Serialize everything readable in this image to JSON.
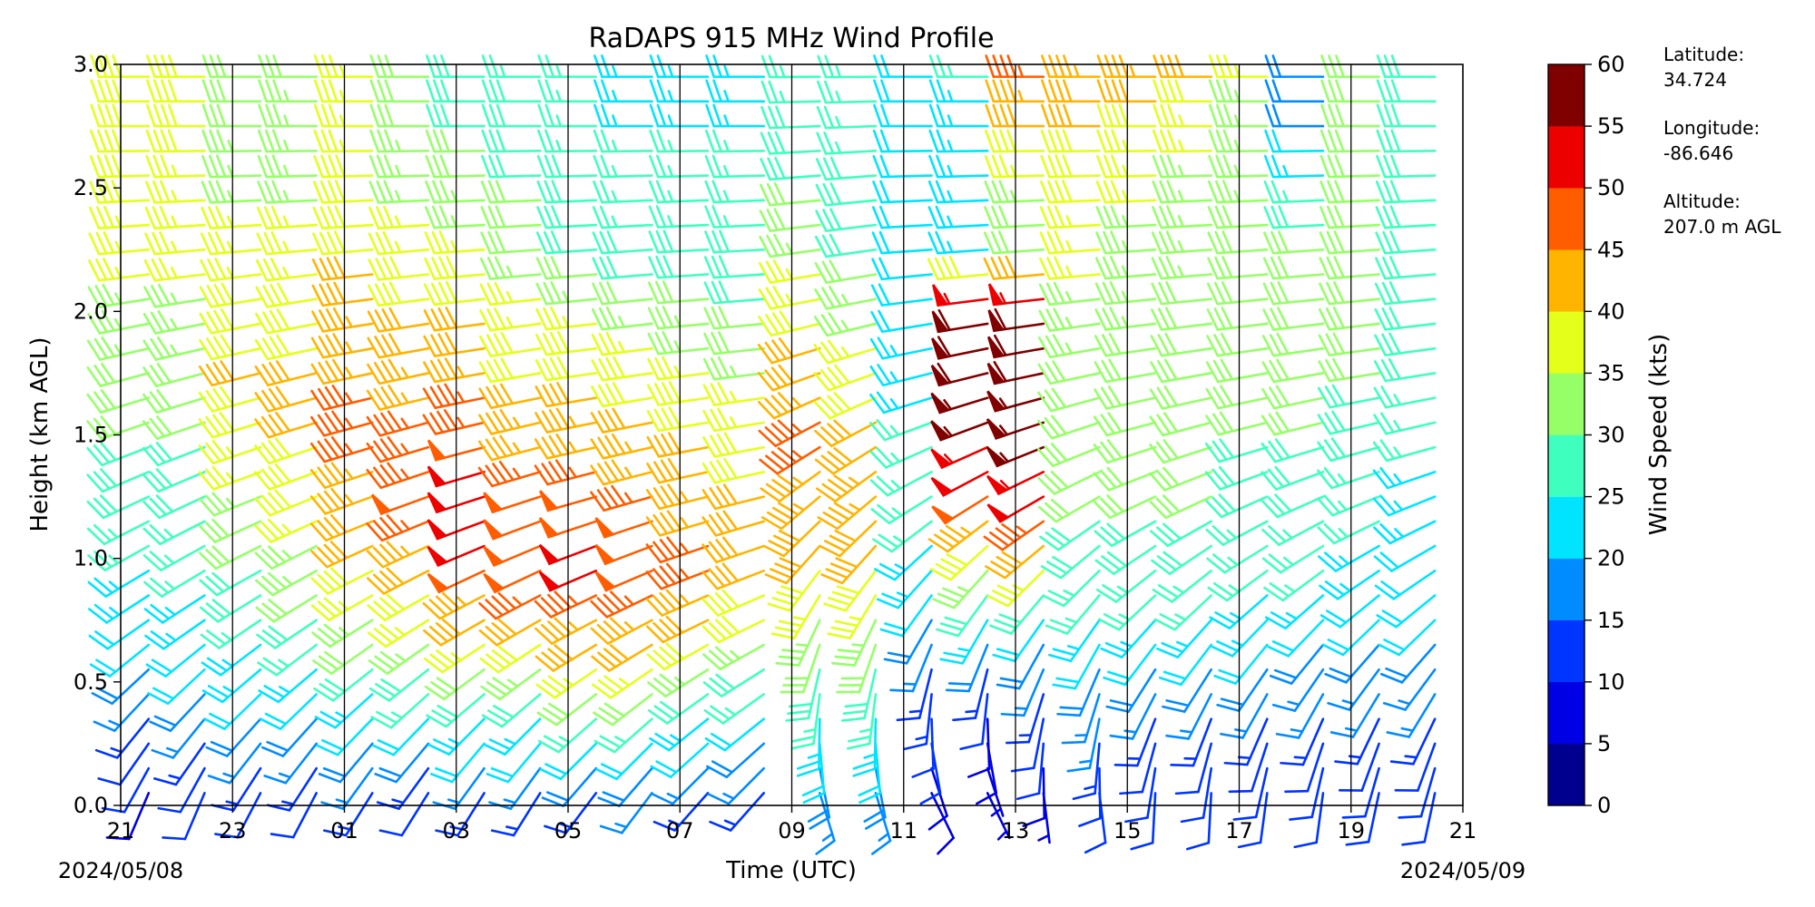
{
  "chart_data": {
    "type": "wind_barb_profile",
    "title": "RaDAPS 915 MHz Wind Profile",
    "xlabel": "Time (UTC)",
    "ylabel": "Height (km AGL)",
    "start_date_label": "2024/05/08",
    "end_date_label": "2024/05/09",
    "x_ticks": [
      "21",
      "23",
      "01",
      "03",
      "05",
      "07",
      "09",
      "11",
      "13",
      "15",
      "17",
      "19",
      "21"
    ],
    "y_ticks": [
      "0.0",
      "0.5",
      "1.0",
      "1.5",
      "2.0",
      "2.5",
      "3.0"
    ],
    "ylim": [
      0,
      3.0
    ],
    "xlim_hours": [
      21,
      45
    ],
    "colorbar": {
      "label": "Wind Speed (kts)",
      "bounds": [
        0,
        5,
        10,
        15,
        20,
        25,
        30,
        35,
        40,
        45,
        50,
        55,
        60
      ],
      "tick_labels": [
        "0",
        "5",
        "10",
        "15",
        "20",
        "25",
        "30",
        "35",
        "40",
        "45",
        "50",
        "55",
        "60"
      ],
      "colors": [
        "#00008f",
        "#0000e4",
        "#0034ff",
        "#008cff",
        "#00e4ff",
        "#3fffbf",
        "#96ff68",
        "#e4ff19",
        "#ffb400",
        "#ff5d00",
        "#ec0000",
        "#800000"
      ]
    },
    "site": {
      "latitude_label": "Latitude:",
      "latitude": "34.724",
      "longitude_label": "Longitude:",
      "longitude": "-86.646",
      "altitude_label": "Altitude:",
      "altitude": "207.0 m AGL"
    },
    "profile_times": [
      21.5,
      22.5,
      23.5,
      24.5,
      25.5,
      26.5,
      27.5,
      28.5,
      29.5,
      30.5,
      31.5,
      32.5,
      33.5,
      34.5,
      35.5,
      36.5,
      37.5,
      38.5,
      39.5,
      40.5,
      41.5,
      42.5,
      43.5,
      44.5
    ],
    "profile_heights_km": [
      0.0,
      0.25,
      0.5,
      0.75,
      1.0,
      1.25,
      1.5,
      1.75,
      2.0,
      2.25,
      2.5,
      2.75,
      3.0
    ],
    "wind_profiles": [
      {
        "time": 21.5,
        "speed": [
          8,
          12,
          18,
          22,
          25,
          28,
          30,
          32,
          34,
          36,
          38,
          39,
          40
        ],
        "direction": [
          200,
          215,
          225,
          235,
          240,
          245,
          250,
          255,
          260,
          265,
          268,
          270,
          270
        ]
      },
      {
        "time": 22.5,
        "speed": [
          9,
          14,
          20,
          23,
          26,
          28,
          30,
          32,
          34,
          36,
          37,
          38,
          39
        ],
        "direction": [
          200,
          215,
          225,
          235,
          240,
          245,
          250,
          255,
          260,
          265,
          268,
          270,
          270
        ]
      },
      {
        "time": 23.5,
        "speed": [
          10,
          15,
          22,
          26,
          30,
          34,
          38,
          40,
          38,
          36,
          34,
          32,
          30
        ],
        "direction": [
          205,
          218,
          228,
          236,
          242,
          248,
          252,
          256,
          260,
          265,
          268,
          270,
          270
        ]
      },
      {
        "time": 24.5,
        "speed": [
          10,
          16,
          24,
          28,
          34,
          38,
          40,
          40,
          38,
          36,
          34,
          33,
          32
        ],
        "direction": [
          205,
          218,
          228,
          236,
          242,
          248,
          252,
          256,
          260,
          265,
          268,
          270,
          270
        ]
      },
      {
        "time": 25.5,
        "speed": [
          12,
          18,
          26,
          34,
          40,
          44,
          46,
          45,
          42,
          40,
          38,
          36,
          35
        ],
        "direction": [
          210,
          220,
          230,
          238,
          244,
          250,
          254,
          258,
          262,
          265,
          268,
          270,
          270
        ]
      },
      {
        "time": 26.5,
        "speed": [
          10,
          18,
          28,
          36,
          44,
          48,
          46,
          44,
          40,
          36,
          34,
          32,
          30
        ],
        "direction": [
          210,
          220,
          230,
          238,
          244,
          250,
          254,
          258,
          262,
          265,
          268,
          270,
          270
        ]
      },
      {
        "time": 27.5,
        "speed": [
          12,
          20,
          30,
          40,
          50,
          52,
          48,
          44,
          40,
          36,
          32,
          30,
          28
        ],
        "direction": [
          210,
          220,
          232,
          240,
          246,
          252,
          256,
          260,
          263,
          266,
          268,
          270,
          270
        ]
      },
      {
        "time": 28.5,
        "speed": [
          12,
          20,
          32,
          42,
          50,
          48,
          44,
          40,
          36,
          32,
          30,
          28,
          27
        ],
        "direction": [
          210,
          220,
          232,
          240,
          246,
          252,
          256,
          260,
          263,
          266,
          268,
          270,
          270
        ]
      },
      {
        "time": 29.5,
        "speed": [
          12,
          22,
          34,
          44,
          52,
          48,
          44,
          40,
          34,
          30,
          28,
          26,
          25
        ],
        "direction": [
          215,
          225,
          234,
          242,
          248,
          254,
          258,
          262,
          264,
          266,
          268,
          270,
          270
        ]
      },
      {
        "time": 30.5,
        "speed": [
          14,
          22,
          34,
          44,
          50,
          46,
          42,
          38,
          32,
          28,
          26,
          25,
          24
        ],
        "direction": [
          215,
          225,
          234,
          242,
          248,
          254,
          258,
          262,
          264,
          266,
          268,
          270,
          270
        ]
      },
      {
        "time": 31.5,
        "speed": [
          12,
          20,
          32,
          42,
          46,
          44,
          40,
          36,
          32,
          28,
          26,
          25,
          24
        ],
        "direction": [
          220,
          228,
          236,
          244,
          250,
          256,
          260,
          263,
          265,
          267,
          268,
          270,
          270
        ]
      },
      {
        "time": 32.5,
        "speed": [
          14,
          18,
          28,
          38,
          42,
          40,
          38,
          34,
          30,
          28,
          26,
          25,
          24
        ],
        "direction": [
          220,
          228,
          236,
          244,
          250,
          256,
          260,
          263,
          265,
          267,
          268,
          270,
          270
        ]
      },
      {
        "time": 33.5,
        "speed": [
          14,
          20,
          28,
          34,
          40,
          44,
          46,
          42,
          38,
          34,
          30,
          28,
          26
        ],
        "direction": [
          160,
          175,
          190,
          205,
          220,
          230,
          240,
          250,
          258,
          262,
          265,
          268,
          270
        ]
      },
      {
        "time": 34.5,
        "speed": [
          14,
          20,
          28,
          34,
          40,
          44,
          42,
          38,
          34,
          30,
          28,
          26,
          25
        ],
        "direction": [
          160,
          175,
          190,
          205,
          220,
          230,
          240,
          250,
          258,
          262,
          265,
          268,
          270
        ]
      },
      {
        "time": 35.5,
        "speed": [
          8,
          10,
          14,
          18,
          24,
          26,
          26,
          24,
          22,
          22,
          22,
          22,
          22
        ],
        "direction": [
          150,
          170,
          190,
          210,
          225,
          238,
          248,
          256,
          262,
          266,
          268,
          270,
          270
        ]
      },
      {
        "time": 36.5,
        "speed": [
          6,
          8,
          12,
          24,
          36,
          48,
          56,
          58,
          60,
          24,
          24,
          24,
          26
        ],
        "direction": [
          150,
          170,
          190,
          210,
          225,
          238,
          248,
          256,
          262,
          266,
          268,
          270,
          270
        ]
      },
      {
        "time": 37.5,
        "speed": [
          6,
          10,
          14,
          22,
          40,
          52,
          56,
          58,
          60,
          30,
          36,
          42,
          46
        ],
        "direction": [
          170,
          185,
          200,
          215,
          228,
          240,
          250,
          258,
          263,
          266,
          268,
          270,
          270
        ]
      },
      {
        "time": 38.5,
        "speed": [
          10,
          14,
          18,
          24,
          28,
          30,
          30,
          32,
          34,
          36,
          38,
          40,
          44
        ],
        "direction": [
          170,
          185,
          200,
          215,
          228,
          240,
          250,
          258,
          263,
          266,
          268,
          270,
          270
        ]
      },
      {
        "time": 39.5,
        "speed": [
          10,
          12,
          18,
          24,
          28,
          30,
          32,
          32,
          33,
          34,
          36,
          38,
          44
        ],
        "direction": [
          180,
          195,
          210,
          222,
          234,
          245,
          254,
          260,
          264,
          266,
          268,
          270,
          270
        ]
      },
      {
        "time": 40.5,
        "speed": [
          10,
          12,
          18,
          24,
          28,
          30,
          30,
          31,
          32,
          33,
          34,
          36,
          42
        ],
        "direction": [
          180,
          195,
          210,
          222,
          234,
          245,
          254,
          260,
          264,
          266,
          268,
          270,
          270
        ]
      },
      {
        "time": 41.5,
        "speed": [
          10,
          12,
          18,
          24,
          26,
          28,
          30,
          30,
          31,
          32,
          33,
          34,
          36
        ],
        "direction": [
          185,
          198,
          212,
          224,
          236,
          246,
          255,
          260,
          264,
          266,
          268,
          270,
          270
        ]
      },
      {
        "time": 42.5,
        "speed": [
          10,
          12,
          16,
          22,
          26,
          28,
          30,
          30,
          31,
          32,
          26,
          20,
          18
        ],
        "direction": [
          185,
          198,
          212,
          224,
          236,
          246,
          255,
          260,
          264,
          266,
          268,
          270,
          270
        ]
      },
      {
        "time": 43.5,
        "speed": [
          10,
          12,
          16,
          20,
          24,
          26,
          28,
          30,
          30,
          30,
          30,
          30,
          30
        ],
        "direction": [
          190,
          200,
          214,
          226,
          238,
          248,
          256,
          261,
          264,
          266,
          268,
          270,
          270
        ]
      },
      {
        "time": 44.5,
        "speed": [
          10,
          12,
          16,
          20,
          22,
          24,
          26,
          28,
          28,
          28,
          28,
          28,
          28
        ],
        "direction": [
          190,
          200,
          214,
          226,
          238,
          248,
          256,
          261,
          264,
          266,
          268,
          270,
          270
        ]
      }
    ]
  }
}
